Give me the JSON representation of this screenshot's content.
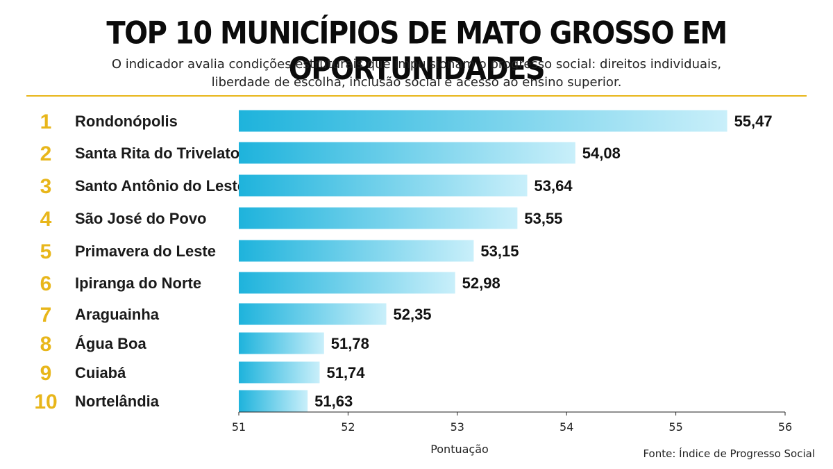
{
  "header": {
    "title": "TOP 10 MUNICÍPIOS DE MATO GROSSO EM OPORTUNIDADES",
    "subtitle": "O indicador avalia condições estruturais que impulsionam o progresso social: direitos individuais, liberdade de escolha, inclusão social e acesso ao ensino superior."
  },
  "source": "Fonte: Índice de Progresso Social",
  "colors": {
    "accent": "#e8b61a",
    "bar_start": "#1eb3dc",
    "bar_end": "#c9effa"
  },
  "chart_data": {
    "type": "bar",
    "orientation": "horizontal",
    "ranks": [
      "1",
      "2",
      "3",
      "4",
      "5",
      "6",
      "7",
      "8",
      "9",
      "10"
    ],
    "categories": [
      "Rondonópolis",
      "Santa Rita do Trivelato",
      "Santo Antônio do Leste",
      "São José do Povo",
      "Primavera do Leste",
      "Ipiranga do Norte",
      "Araguainha",
      "Água Boa",
      "Cuiabá",
      "Nortelândia"
    ],
    "values": [
      55.47,
      54.08,
      53.64,
      53.55,
      53.15,
      52.98,
      52.35,
      51.78,
      51.74,
      51.63
    ],
    "value_labels": [
      "55,47",
      "54,08",
      "53,64",
      "53,55",
      "53,15",
      "52,98",
      "52,35",
      "51,78",
      "51,74",
      "51,63"
    ],
    "xlabel": "Pontuação",
    "xlim": [
      51,
      56
    ],
    "xticks": [
      51,
      52,
      53,
      54,
      55,
      56
    ],
    "grid": false,
    "legend": "none"
  }
}
